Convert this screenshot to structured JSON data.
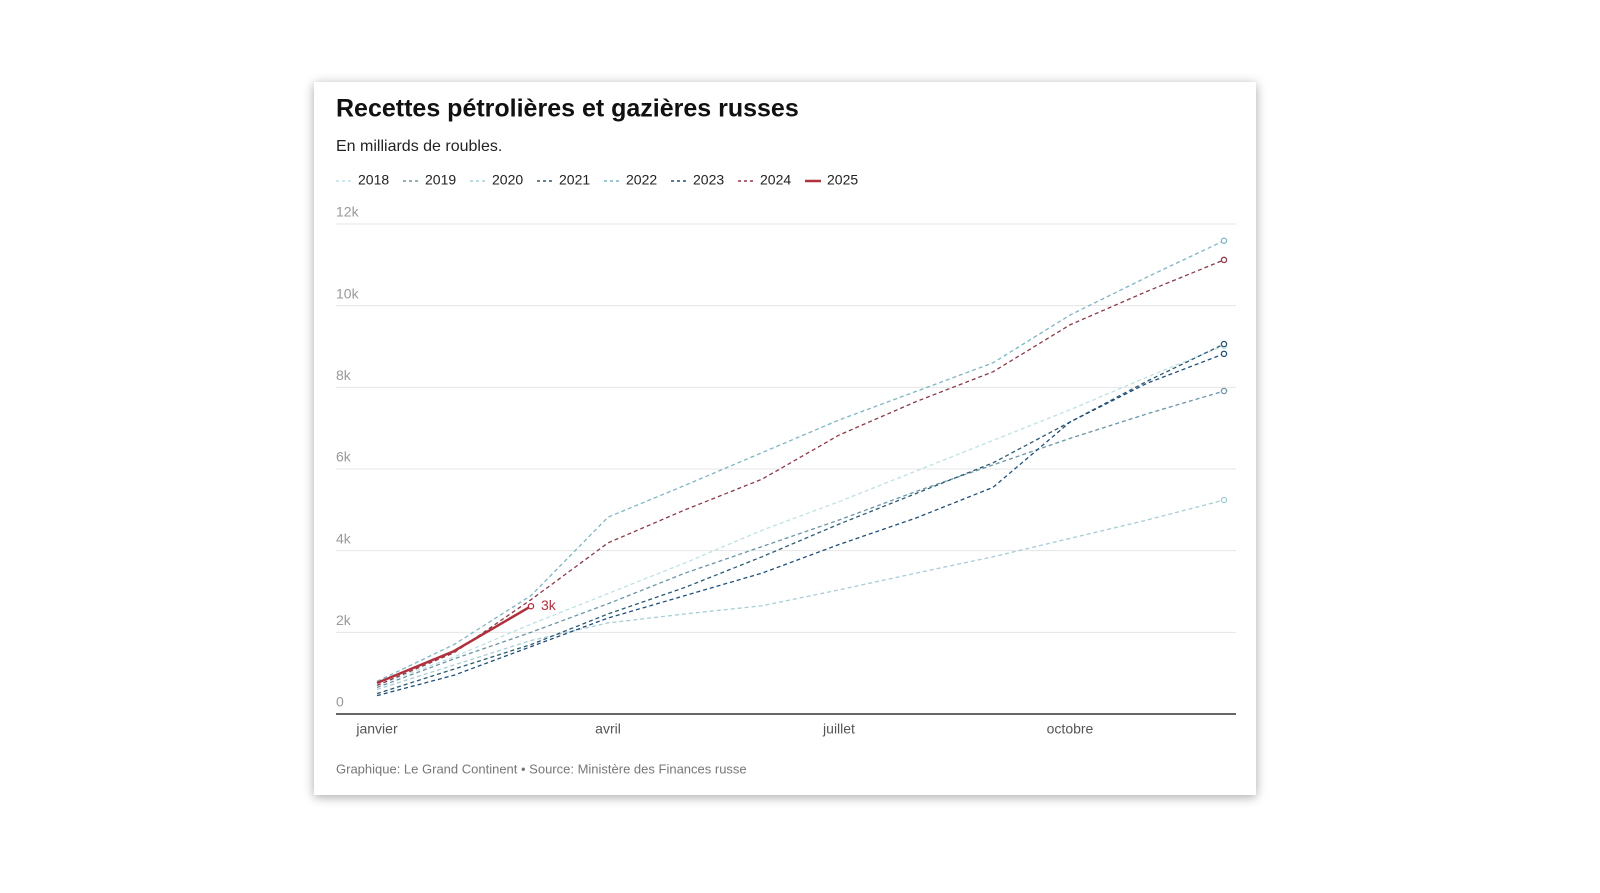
{
  "chart_data": {
    "type": "line",
    "title": "Recettes pétrolières et gazières russes",
    "subtitle": "En milliards de roubles.",
    "source": "Graphique: Le Grand Continent • Source: Ministère des Finances russe",
    "categories": [
      "janvier",
      null,
      null,
      "avril",
      null,
      null,
      "juillet",
      null,
      null,
      "octobre",
      null,
      null
    ],
    "ylim": [
      0,
      12000
    ],
    "yticks": [
      0,
      {
        "value": 2000,
        "label": "2k"
      },
      {
        "value": 4000,
        "label": "4k"
      },
      {
        "value": 6000,
        "label": "6k"
      },
      {
        "value": 8000,
        "label": "8k"
      },
      {
        "value": 10000,
        "label": "10k"
      },
      {
        "value": 12000,
        "label": "12k"
      }
    ],
    "grid": true,
    "legend": "top-left",
    "series": [
      {
        "name": "2018",
        "color": "#bfe0e6",
        "dashed": true,
        "values": [
          700,
          1400,
          2200,
          2950,
          3700,
          4500,
          5200,
          5950,
          6700,
          7450,
          8250,
          9020
        ]
      },
      {
        "name": "2019",
        "color": "#6a95a5",
        "dashed": true,
        "values": [
          650,
          1350,
          2000,
          2700,
          3450,
          4100,
          4750,
          5450,
          6100,
          6750,
          7350,
          7910
        ]
      },
      {
        "name": "2020",
        "color": "#a9cdd6",
        "dashed": true,
        "values": [
          600,
          1200,
          1800,
          2230,
          2450,
          2650,
          3040,
          3450,
          3850,
          4300,
          4750,
          5240
        ]
      },
      {
        "name": "2021",
        "color": "#2c5a70",
        "dashed": true,
        "values": [
          500,
          1100,
          1700,
          2450,
          3100,
          3850,
          4650,
          5400,
          6150,
          7150,
          8150,
          9060
        ]
      },
      {
        "name": "2022",
        "color": "#7fb5c2",
        "dashed": true,
        "values": [
          800,
          1700,
          2900,
          4820,
          5600,
          6400,
          7200,
          7900,
          8600,
          9770,
          10700,
          11590
        ]
      },
      {
        "name": "2023",
        "color": "#1f4e79",
        "dashed": true,
        "values": [
          450,
          950,
          1650,
          2350,
          2900,
          3450,
          4150,
          4800,
          5550,
          7150,
          8100,
          8820
        ]
      },
      {
        "name": "2024",
        "color": "#8a3a48",
        "dashed": true,
        "values": [
          700,
          1500,
          2800,
          4190,
          5000,
          5750,
          6830,
          7650,
          8380,
          9530,
          10350,
          11120
        ]
      },
      {
        "name": "2025",
        "color": "#b0303e",
        "dashed": false,
        "values": [
          760,
          1540,
          2640,
          null,
          null,
          null,
          null,
          null,
          null,
          null,
          null,
          null
        ],
        "value_labels": [
          null,
          null,
          "3k",
          null,
          null,
          null,
          null,
          null,
          null,
          null,
          null,
          null
        ]
      }
    ]
  }
}
